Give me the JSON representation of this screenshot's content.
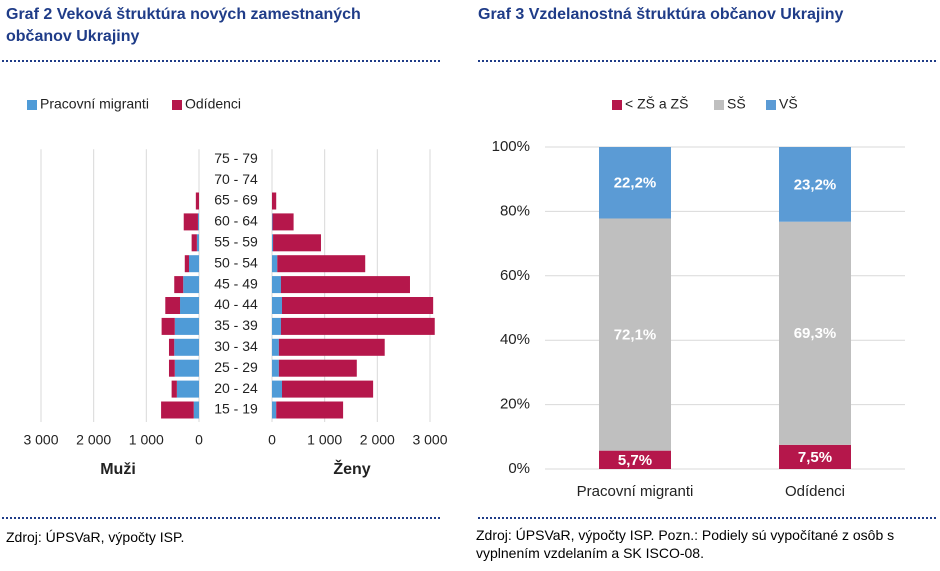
{
  "chart_data": [
    {
      "type": "pyramid",
      "title": "Graf 2 Veková štruktúra nových zamestnaných občanov Ukrajiny",
      "source": "Zdroj: ÚPSVaR, výpočty ISP.",
      "categories": [
        "15 - 19",
        "20 - 24",
        "25 - 29",
        "30 - 34",
        "35 - 39",
        "40 - 44",
        "45 - 49",
        "50 - 54",
        "55 - 59",
        "60 - 64",
        "65 - 69",
        "70 - 74",
        "75 - 79"
      ],
      "left_label": "Muži",
      "right_label": "Ženy",
      "left_xlim": [
        0,
        3000
      ],
      "right_xlim": [
        0,
        3000
      ],
      "left_xticks": [
        {
          "value": 3000,
          "label": "3 000"
        },
        {
          "value": 2000,
          "label": "2 000"
        },
        {
          "value": 1000,
          "label": "1 000"
        },
        0
      ],
      "right_xticks": [
        0,
        {
          "value": 1000,
          "label": "1 000"
        },
        {
          "value": 2000,
          "label": "2 000"
        },
        {
          "value": 3000,
          "label": "3 000"
        }
      ],
      "grid": true,
      "legend": "top-left",
      "series": [
        {
          "name": "Pracovní migranti",
          "color": "#4f9bd7",
          "left_values": [
            100,
            420,
            460,
            470,
            460,
            360,
            300,
            190,
            40,
            20,
            0,
            0,
            0
          ],
          "right_values": [
            80,
            190,
            130,
            130,
            170,
            190,
            170,
            100,
            20,
            10,
            0,
            0,
            0
          ]
        },
        {
          "name": "Odídenci",
          "color": "#b5174b",
          "left_values": [
            620,
            100,
            110,
            100,
            250,
            280,
            170,
            80,
            100,
            270,
            60,
            0,
            0
          ],
          "right_values": [
            1270,
            1730,
            1480,
            2010,
            2920,
            2870,
            2450,
            1670,
            910,
            400,
            80,
            0,
            0
          ]
        }
      ]
    },
    {
      "type": "bar",
      "stacked": true,
      "title": "Graf 3 Vzdelanostná štruktúra občanov Ukrajiny",
      "source": "Zdroj: ÚPSVaR, výpočty ISP. Pozn.: Podiely sú vypočítané z osôb s vyplnením vzdelaním a SK ISCO-08.",
      "categories": [
        "Pracovní migranti",
        "Odídenci"
      ],
      "ylim": [
        0,
        100
      ],
      "yticks": [
        {
          "value": 0,
          "label": "0%"
        },
        {
          "value": 20,
          "label": "20%"
        },
        {
          "value": 40,
          "label": "40%"
        },
        {
          "value": 60,
          "label": "60%"
        },
        {
          "value": 80,
          "label": "80%"
        },
        {
          "value": 100,
          "label": "100%"
        }
      ],
      "grid": true,
      "legend": "top-center",
      "series": [
        {
          "name": "< ZŠ a ZŠ",
          "color": "#b5174b",
          "values": [
            5.7,
            7.5
          ],
          "value_labels": [
            "5,7%",
            "7,5%"
          ]
        },
        {
          "name": "SŠ",
          "color": "#bfbfbf",
          "values": [
            72.1,
            69.3
          ],
          "value_labels": [
            "72,1%",
            "69,3%"
          ]
        },
        {
          "name": "VŠ",
          "color": "#5b9bd5",
          "values": [
            22.2,
            23.2
          ],
          "value_labels": [
            "22,2%",
            "23,2%"
          ]
        }
      ]
    }
  ]
}
